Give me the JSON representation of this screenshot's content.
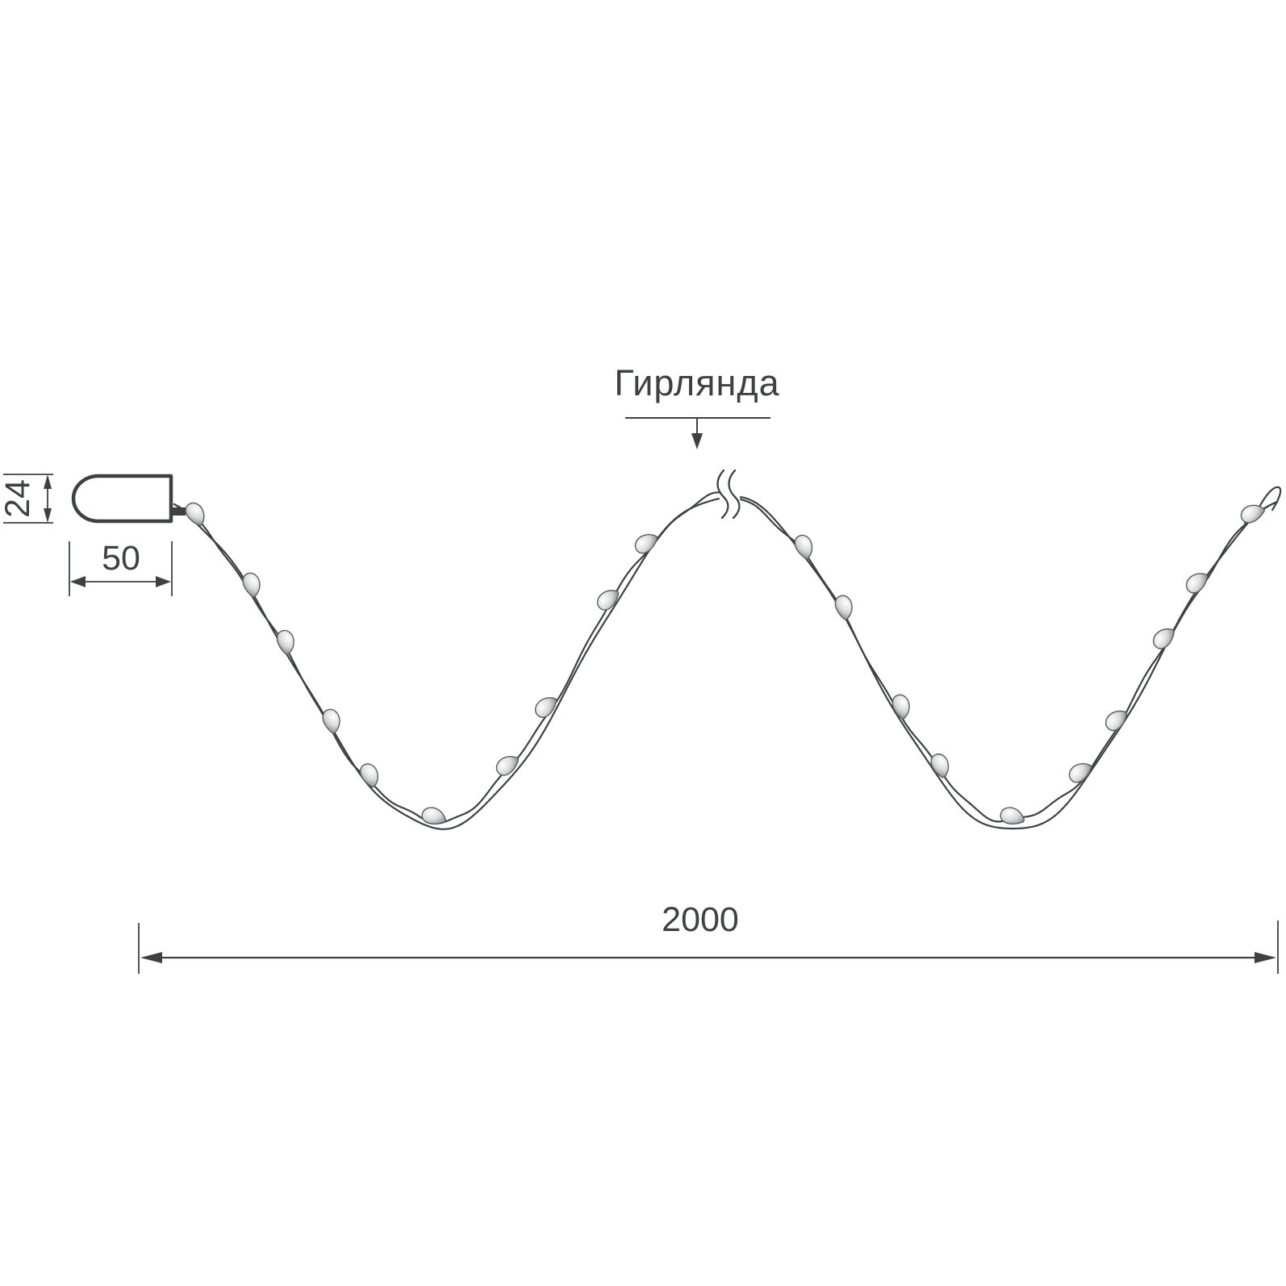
{
  "colors": {
    "ink": "#3e4144",
    "background": "#ffffff",
    "bulb_highlight": "#ffffff",
    "bulb_mid": "#d9d9d9",
    "bulb_edge": "#8e8e8e"
  },
  "labels": {
    "garland": "Гирлянда"
  },
  "dimensions": {
    "connector_height": "24",
    "connector_length": "50",
    "garland_length": "2000"
  },
  "illustration": {
    "bulb_count": 20,
    "has_break_symbol": true,
    "wire_strands": 2
  }
}
